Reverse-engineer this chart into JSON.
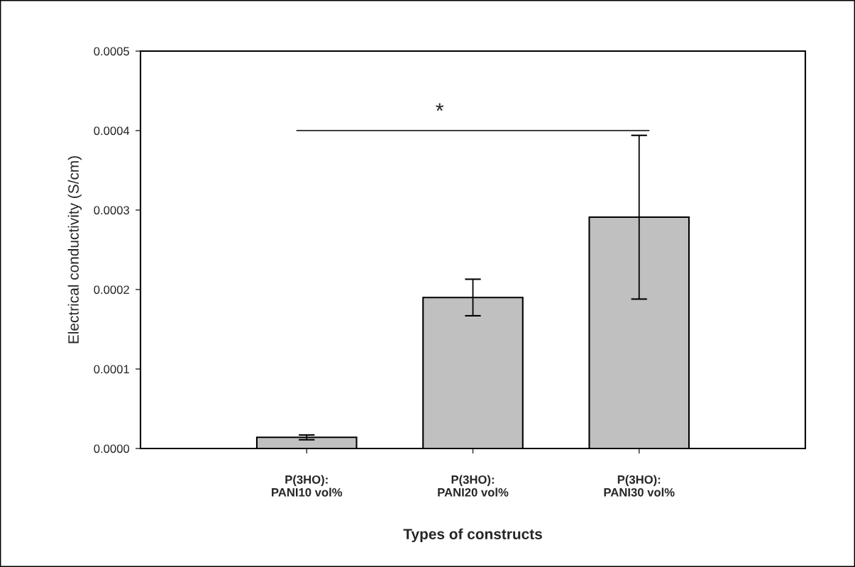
{
  "chart_data": {
    "type": "bar",
    "xlabel": "Types of constructs",
    "ylabel": "Electrical conductivity (S/cm)",
    "categories": [
      "P(3HO):\nPANI10 vol%",
      "P(3HO):\nPANI20 vol%",
      "P(3HO):\nPANI30 vol%"
    ],
    "values": [
      1.4e-05,
      0.00019,
      0.000291
    ],
    "errors": [
      3e-06,
      2.3e-05,
      0.000103
    ],
    "color": "#c0c0c0",
    "ylim": [
      0,
      0.0005
    ],
    "yticks": [
      {
        "value": 0,
        "label": "0.0000"
      },
      {
        "value": 0.0001,
        "label": "0.0001"
      },
      {
        "value": 0.0002,
        "label": "0.0002"
      },
      {
        "value": 0.0003,
        "label": "0.0003"
      },
      {
        "value": 0.0004,
        "label": "0.0004"
      },
      {
        "value": 0.0005,
        "label": "0.0005"
      }
    ],
    "ref_lines": [
      {
        "axis": "y",
        "value": 0.0004,
        "label": "*"
      }
    ],
    "grid": false,
    "legend": false
  }
}
